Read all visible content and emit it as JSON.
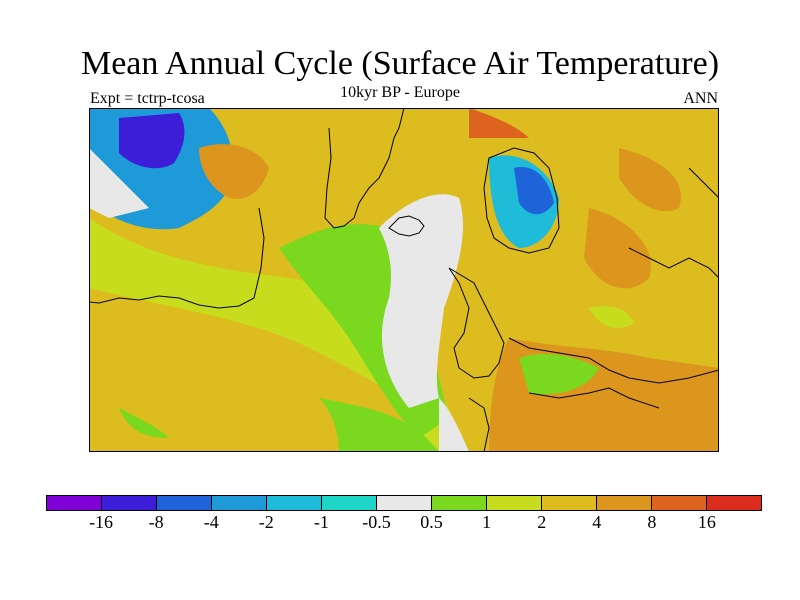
{
  "title": "Mean Annual Cycle (Surface Air Temperature)",
  "subtitle": "10kyr BP - Europe",
  "experiment": "Expt = tctrp-tcosa",
  "season": "ANN",
  "legend": {
    "colors": [
      "#8000d8",
      "#3c1ed8",
      "#1e64d8",
      "#1e9ad8",
      "#1ebcd8",
      "#1ed6c8",
      "#e8e8e8",
      "#7ad81e",
      "#c8dc1e",
      "#dcbc1e",
      "#dc961e",
      "#dc641e",
      "#dc2c1e"
    ],
    "labels": [
      "-16",
      "-8",
      "-4",
      "-2",
      "-1",
      "-0.5",
      "0.5",
      "1",
      "2",
      "4",
      "8",
      "16"
    ]
  },
  "palette": {
    "land_warm": "#dc961e",
    "ocean_mild": "#c8dc1e",
    "ocean_low": "#7ad81e",
    "neutral": "#e8e8e8",
    "cold": "#1e64d8",
    "very_cold": "#3c1ed8",
    "hot": "#dc641e"
  }
}
